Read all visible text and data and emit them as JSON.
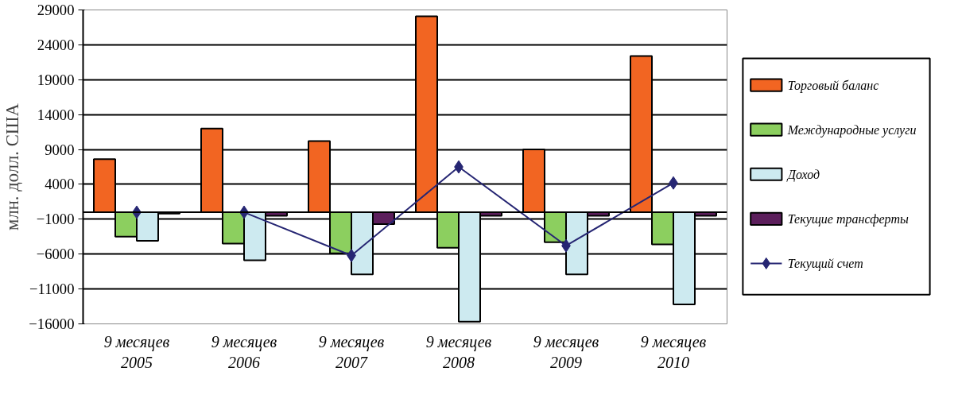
{
  "chart_data": {
    "type": "bar",
    "ylabel": "млн. долл. США",
    "categories": [
      "9 месяцев\n2005",
      "9 месяцев\n2006",
      "9 месяцев\n2007",
      "9 месяцев\n2008",
      "9 месяцев\n2009",
      "9 месяцев\n2010"
    ],
    "series": [
      {
        "name": "Торговый баланс",
        "color": "#f26522",
        "values": [
          7600,
          12000,
          10200,
          28100,
          9000,
          22400
        ]
      },
      {
        "name": "Международные услуги",
        "color": "#8ccf5f",
        "values": [
          -3500,
          -4500,
          -5900,
          -5100,
          -4300,
          -4600
        ]
      },
      {
        "name": "Доход",
        "color": "#cdeaf0",
        "values": [
          -4100,
          -6900,
          -8900,
          -15700,
          -8900,
          -13200
        ]
      },
      {
        "name": "Текущие трансферты",
        "color": "#5c1f5c",
        "values": [
          -200,
          -500,
          -1700,
          -500,
          -500,
          -500
        ]
      },
      {
        "name": "Текущий счет",
        "color": "#262673",
        "type": "line",
        "marker": "diamond",
        "values": [
          0,
          0,
          -6200,
          6500,
          -4800,
          4200
        ]
      }
    ],
    "ylim": [
      -16000,
      29000
    ],
    "yticks": [
      -16000,
      -11000,
      -6000,
      -1000,
      4000,
      9000,
      14000,
      19000,
      24000,
      29000
    ],
    "grid": "y",
    "legend": "right",
    "ref_lines": [
      {
        "axis": "y",
        "value": 0,
        "color": "#000000"
      }
    ]
  }
}
